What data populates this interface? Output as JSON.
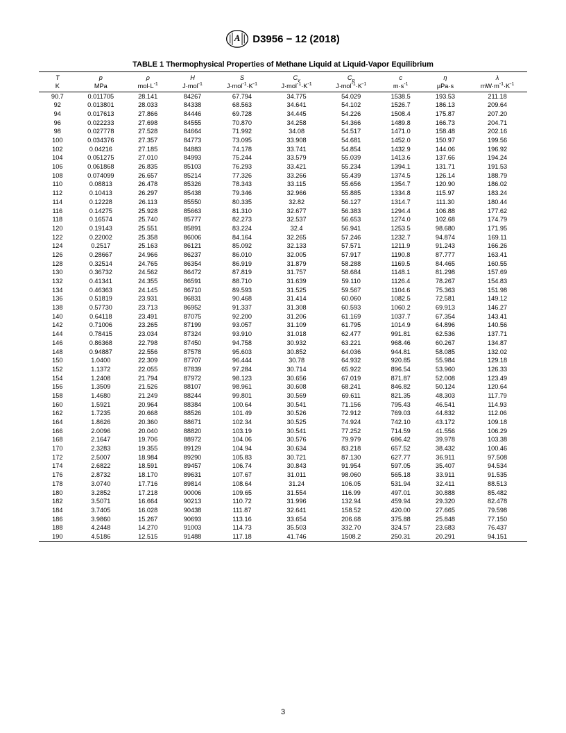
{
  "header": {
    "designation": "D3956 − 12 (2018)"
  },
  "table": {
    "title": "TABLE 1 Thermophysical Properties of Methane Liquid at Liquid-Vapor Equilibrium",
    "columns": [
      {
        "symbol_html": "<i>T</i>",
        "unit_html": "K"
      },
      {
        "symbol_html": "<i>p</i>",
        "unit_html": "MPa"
      },
      {
        "symbol_html": "ρ",
        "unit_html": "mol·L<sup>-1</sup>"
      },
      {
        "symbol_html": "<i>H</i>",
        "unit_html": "J·mol<sup>-1</sup>"
      },
      {
        "symbol_html": "<i>S</i>",
        "unit_html": "J·mol<sup>-1</sup>·K<sup>-1</sup>"
      },
      {
        "symbol_html": "<i>C</i><sub>v</sub>",
        "unit_html": "J·mol<sup>-1</sup>·K<sup>-1</sup>"
      },
      {
        "symbol_html": "<i>C</i><sub>p</sub>",
        "unit_html": "J·mol<sup>-1</sup>·K<sup>-1</sup>"
      },
      {
        "symbol_html": "<i>c</i>",
        "unit_html": "m·s<sup>-1</sup>"
      },
      {
        "symbol_html": "η",
        "unit_html": "µPa·s"
      },
      {
        "symbol_html": "λ",
        "unit_html": "mW·m<sup>-1</sup>·K<sup>-1</sup>"
      }
    ],
    "rows": [
      [
        "90.7",
        "0.011705",
        "28.141",
        "84267",
        "67.794",
        "34.775",
        "54.029",
        "1538.5",
        "193.53",
        "211.18"
      ],
      [
        "92",
        "0.013801",
        "28.033",
        "84338",
        "68.563",
        "34.641",
        "54.102",
        "1526.7",
        "186.13",
        "209.64"
      ],
      [
        "94",
        "0.017613",
        "27.866",
        "84446",
        "69.728",
        "34.445",
        "54.226",
        "1508.4",
        "175.87",
        "207.20"
      ],
      [
        "96",
        "0.022233",
        "27.698",
        "84555",
        "70.870",
        "34.258",
        "54.366",
        "1489.8",
        "166.73",
        "204.71"
      ],
      [
        "98",
        "0.027778",
        "27.528",
        "84664",
        "71.992",
        "34.08",
        "54.517",
        "1471.0",
        "158.48",
        "202.16"
      ],
      [
        "100",
        "0.034376",
        "27.357",
        "84773",
        "73.095",
        "33.908",
        "54.681",
        "1452.0",
        "150.97",
        "199.56"
      ],
      [
        "102",
        "0.04216",
        "27.185",
        "84883",
        "74.178",
        "33.741",
        "54.854",
        "1432.9",
        "144.06",
        "196.92"
      ],
      [
        "104",
        "0.051275",
        "27.010",
        "84993",
        "75.244",
        "33.579",
        "55.039",
        "1413.6",
        "137.66",
        "194.24"
      ],
      [
        "106",
        "0.061868",
        "26.835",
        "85103",
        "76.293",
        "33.421",
        "55.234",
        "1394.1",
        "131.71",
        "191.53"
      ],
      [
        "108",
        "0.074099",
        "26.657",
        "85214",
        "77.326",
        "33.266",
        "55.439",
        "1374.5",
        "126.14",
        "188.79"
      ],
      [
        "110",
        "0.08813",
        "26.478",
        "85326",
        "78.343",
        "33.115",
        "55.656",
        "1354.7",
        "120.90",
        "186.02"
      ],
      [
        "112",
        "0.10413",
        "26.297",
        "85438",
        "79.346",
        "32.966",
        "55.885",
        "1334.8",
        "115.97",
        "183.24"
      ],
      [
        "114",
        "0.12228",
        "26.113",
        "85550",
        "80.335",
        "32.82",
        "56.127",
        "1314.7",
        "111.30",
        "180.44"
      ],
      [
        "116",
        "0.14275",
        "25.928",
        "85663",
        "81.310",
        "32.677",
        "56.383",
        "1294.4",
        "106.88",
        "177.62"
      ],
      [
        "118",
        "0.16574",
        "25.740",
        "85777",
        "82.273",
        "32.537",
        "56.653",
        "1274.0",
        "102.68",
        "174.79"
      ],
      [
        "120",
        "0.19143",
        "25.551",
        "85891",
        "83.224",
        "32.4",
        "56.941",
        "1253.5",
        "98.680",
        "171.95"
      ],
      [
        "122",
        "0.22002",
        "25.358",
        "86006",
        "84.164",
        "32.265",
        "57.246",
        "1232.7",
        "94.874",
        "169.11"
      ],
      [
        "124",
        "0.2517",
        "25.163",
        "86121",
        "85.092",
        "32.133",
        "57.571",
        "1211.9",
        "91.243",
        "166.26"
      ],
      [
        "126",
        "0.28667",
        "24.966",
        "86237",
        "86.010",
        "32.005",
        "57.917",
        "1190.8",
        "87.777",
        "163.41"
      ],
      [
        "128",
        "0.32514",
        "24.765",
        "86354",
        "86.919",
        "31.879",
        "58.288",
        "1169.5",
        "84.465",
        "160.55"
      ],
      [
        "130",
        "0.36732",
        "24.562",
        "86472",
        "87.819",
        "31.757",
        "58.684",
        "1148.1",
        "81.298",
        "157.69"
      ],
      [
        "132",
        "0.41341",
        "24.355",
        "86591",
        "88.710",
        "31.639",
        "59.110",
        "1126.4",
        "78.267",
        "154.83"
      ],
      [
        "134",
        "0.46363",
        "24.145",
        "86710",
        "89.593",
        "31.525",
        "59.567",
        "1104.6",
        "75.363",
        "151.98"
      ],
      [
        "136",
        "0.51819",
        "23.931",
        "86831",
        "90.468",
        "31.414",
        "60.060",
        "1082.5",
        "72.581",
        "149.12"
      ],
      [
        "138",
        "0.57730",
        "23.713",
        "86952",
        "91.337",
        "31.308",
        "60.593",
        "1060.2",
        "69.913",
        "146.27"
      ],
      [
        "140",
        "0.64118",
        "23.491",
        "87075",
        "92.200",
        "31.206",
        "61.169",
        "1037.7",
        "67.354",
        "143.41"
      ],
      [
        "142",
        "0.71006",
        "23.265",
        "87199",
        "93.057",
        "31.109",
        "61.795",
        "1014.9",
        "64.896",
        "140.56"
      ],
      [
        "144",
        "0.78415",
        "23.034",
        "87324",
        "93.910",
        "31.018",
        "62.477",
        "991.81",
        "62.536",
        "137.71"
      ],
      [
        "146",
        "0.86368",
        "22.798",
        "87450",
        "94.758",
        "30.932",
        "63.221",
        "968.46",
        "60.267",
        "134.87"
      ],
      [
        "148",
        "0.94887",
        "22.556",
        "87578",
        "95.603",
        "30.852",
        "64.036",
        "944.81",
        "58.085",
        "132.02"
      ],
      [
        "150",
        "1.0400",
        "22.309",
        "87707",
        "96.444",
        "30.78",
        "64.932",
        "920.85",
        "55.984",
        "129.18"
      ],
      [
        "152",
        "1.1372",
        "22.055",
        "87839",
        "97.284",
        "30.714",
        "65.922",
        "896.54",
        "53.960",
        "126.33"
      ],
      [
        "154",
        "1.2408",
        "21.794",
        "87972",
        "98.123",
        "30.656",
        "67.019",
        "871.87",
        "52.008",
        "123.49"
      ],
      [
        "156",
        "1.3509",
        "21.526",
        "88107",
        "98.961",
        "30.608",
        "68.241",
        "846.82",
        "50.124",
        "120.64"
      ],
      [
        "158",
        "1.4680",
        "21.249",
        "88244",
        "99.801",
        "30.569",
        "69.611",
        "821.35",
        "48.303",
        "117.79"
      ],
      [
        "160",
        "1.5921",
        "20.964",
        "88384",
        "100.64",
        "30.541",
        "71.156",
        "795.43",
        "46.541",
        "114.93"
      ],
      [
        "162",
        "1.7235",
        "20.668",
        "88526",
        "101.49",
        "30.526",
        "72.912",
        "769.03",
        "44.832",
        "112.06"
      ],
      [
        "164",
        "1.8626",
        "20.360",
        "88671",
        "102.34",
        "30.525",
        "74.924",
        "742.10",
        "43.172",
        "109.18"
      ],
      [
        "166",
        "2.0096",
        "20.040",
        "88820",
        "103.19",
        "30.541",
        "77.252",
        "714.59",
        "41.556",
        "106.29"
      ],
      [
        "168",
        "2.1647",
        "19.706",
        "88972",
        "104.06",
        "30.576",
        "79.979",
        "686.42",
        "39.978",
        "103.38"
      ],
      [
        "170",
        "2.3283",
        "19.355",
        "89129",
        "104.94",
        "30.634",
        "83.218",
        "657.52",
        "38.432",
        "100.46"
      ],
      [
        "172",
        "2.5007",
        "18.984",
        "89290",
        "105.83",
        "30.721",
        "87.130",
        "627.77",
        "36.911",
        "97.508"
      ],
      [
        "174",
        "2.6822",
        "18.591",
        "89457",
        "106.74",
        "30.843",
        "91.954",
        "597.05",
        "35.407",
        "94.534"
      ],
      [
        "176",
        "2.8732",
        "18.170",
        "89631",
        "107.67",
        "31.011",
        "98.060",
        "565.18",
        "33.911",
        "91.535"
      ],
      [
        "178",
        "3.0740",
        "17.716",
        "89814",
        "108.64",
        "31.24",
        "106.05",
        "531.94",
        "32.411",
        "88.513"
      ],
      [
        "180",
        "3.2852",
        "17.218",
        "90006",
        "109.65",
        "31.554",
        "116.99",
        "497.01",
        "30.888",
        "85.482"
      ],
      [
        "182",
        "3.5071",
        "16.664",
        "90213",
        "110.72",
        "31.996",
        "132.94",
        "459.94",
        "29.320",
        "82.478"
      ],
      [
        "184",
        "3.7405",
        "16.028",
        "90438",
        "111.87",
        "32.641",
        "158.52",
        "420.00",
        "27.665",
        "79.598"
      ],
      [
        "186",
        "3.9860",
        "15.267",
        "90693",
        "113.16",
        "33.654",
        "206.68",
        "375.88",
        "25.848",
        "77.150"
      ],
      [
        "188",
        "4.2448",
        "14.270",
        "91003",
        "114.73",
        "35.503",
        "332.70",
        "324.57",
        "23.683",
        "76.437"
      ],
      [
        "190",
        "4.5186",
        "12.515",
        "91488",
        "117.18",
        "41.746",
        "1508.2",
        "250.31",
        "20.291",
        "94.151"
      ]
    ]
  },
  "page_number": "3"
}
